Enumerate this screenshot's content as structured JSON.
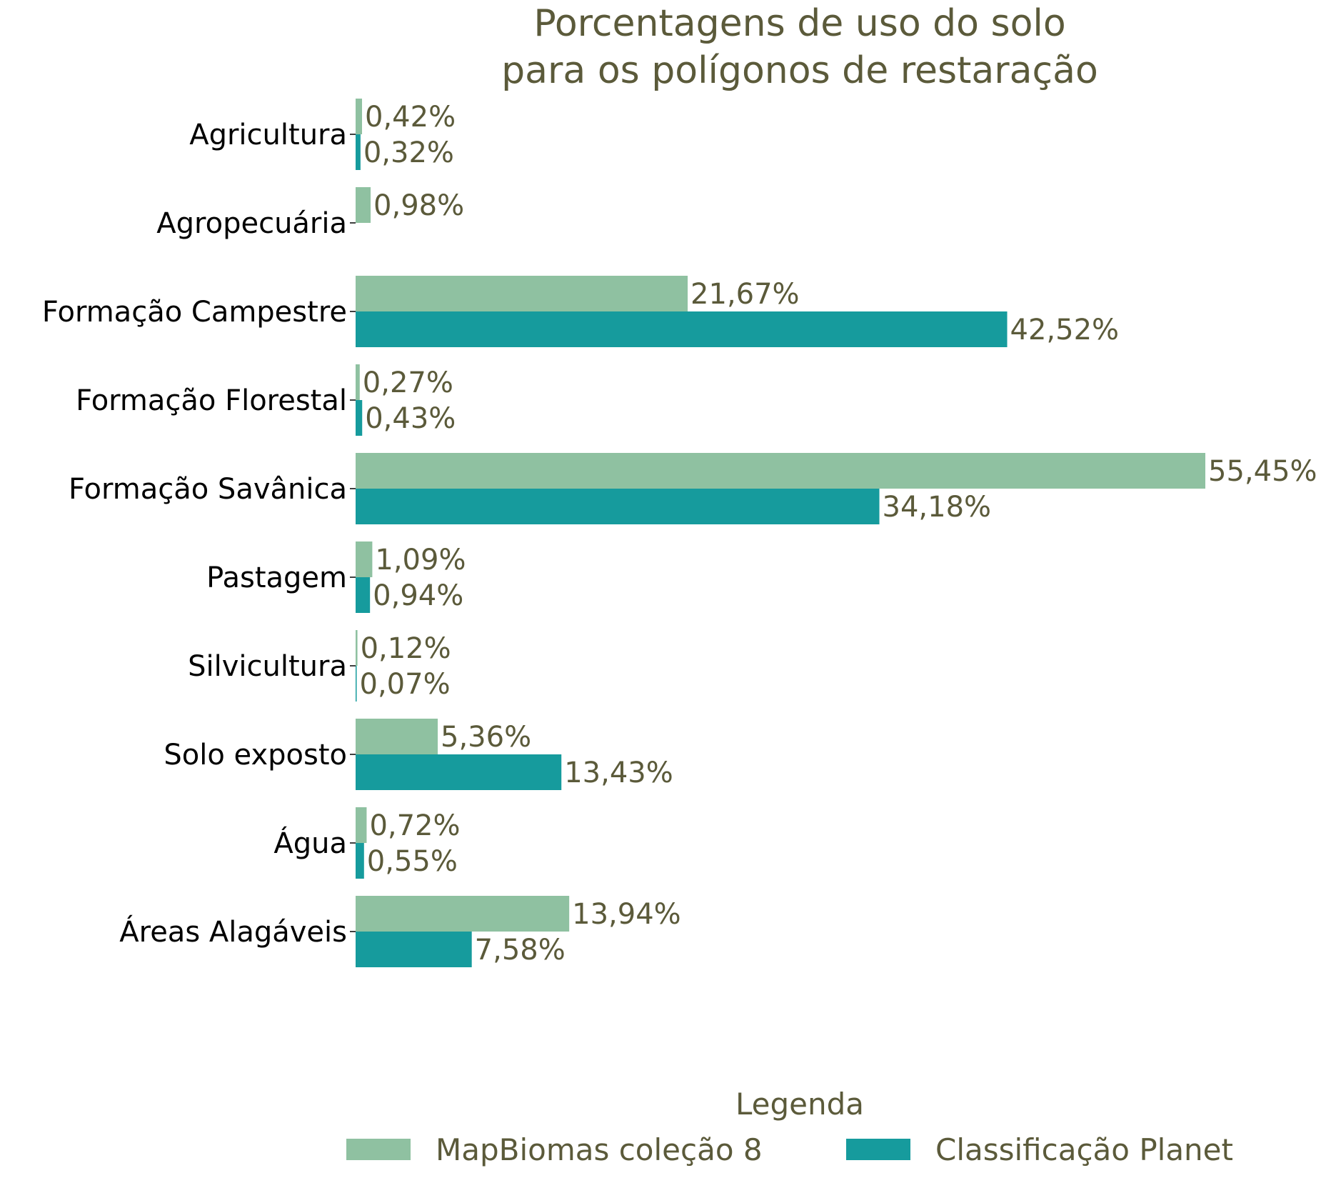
{
  "chart_data": {
    "type": "bar",
    "orientation": "horizontal",
    "title_lines": [
      "Porcentagens de uso do solo",
      "para os polígonos de restaração"
    ],
    "categories": [
      "Agricultura",
      "Agropecuária",
      "Formação Campestre",
      "Formação Florestal",
      "Formação Savânica",
      "Pastagem",
      "Silvicultura",
      "Solo exposto",
      "Água",
      "Áreas Alagáveis"
    ],
    "series": [
      {
        "name": "MapBiomas coleção 8",
        "color": "#8fc1a1",
        "values": [
          0.42,
          0.98,
          21.67,
          0.27,
          55.45,
          1.09,
          0.12,
          5.36,
          0.72,
          13.94
        ],
        "labels": [
          "0,42%",
          "0,98%",
          "21,67%",
          "0,27%",
          "55,45%",
          "1,09%",
          "0,12%",
          "5,36%",
          "0,72%",
          "13,94%"
        ]
      },
      {
        "name": "Classificação Planet",
        "color": "#169b9d",
        "values": [
          0.32,
          null,
          42.52,
          0.43,
          34.18,
          0.94,
          0.07,
          13.43,
          0.55,
          7.58
        ],
        "labels": [
          "0,32%",
          null,
          "42,52%",
          "0,43%",
          "34,18%",
          "0,94%",
          "0,07%",
          "13,43%",
          "0,55%",
          "7,58%"
        ]
      }
    ],
    "xlim": [
      0,
      55.45
    ],
    "grid": false,
    "legend": {
      "title": "Legenda",
      "placement": "bottom-center"
    }
  }
}
